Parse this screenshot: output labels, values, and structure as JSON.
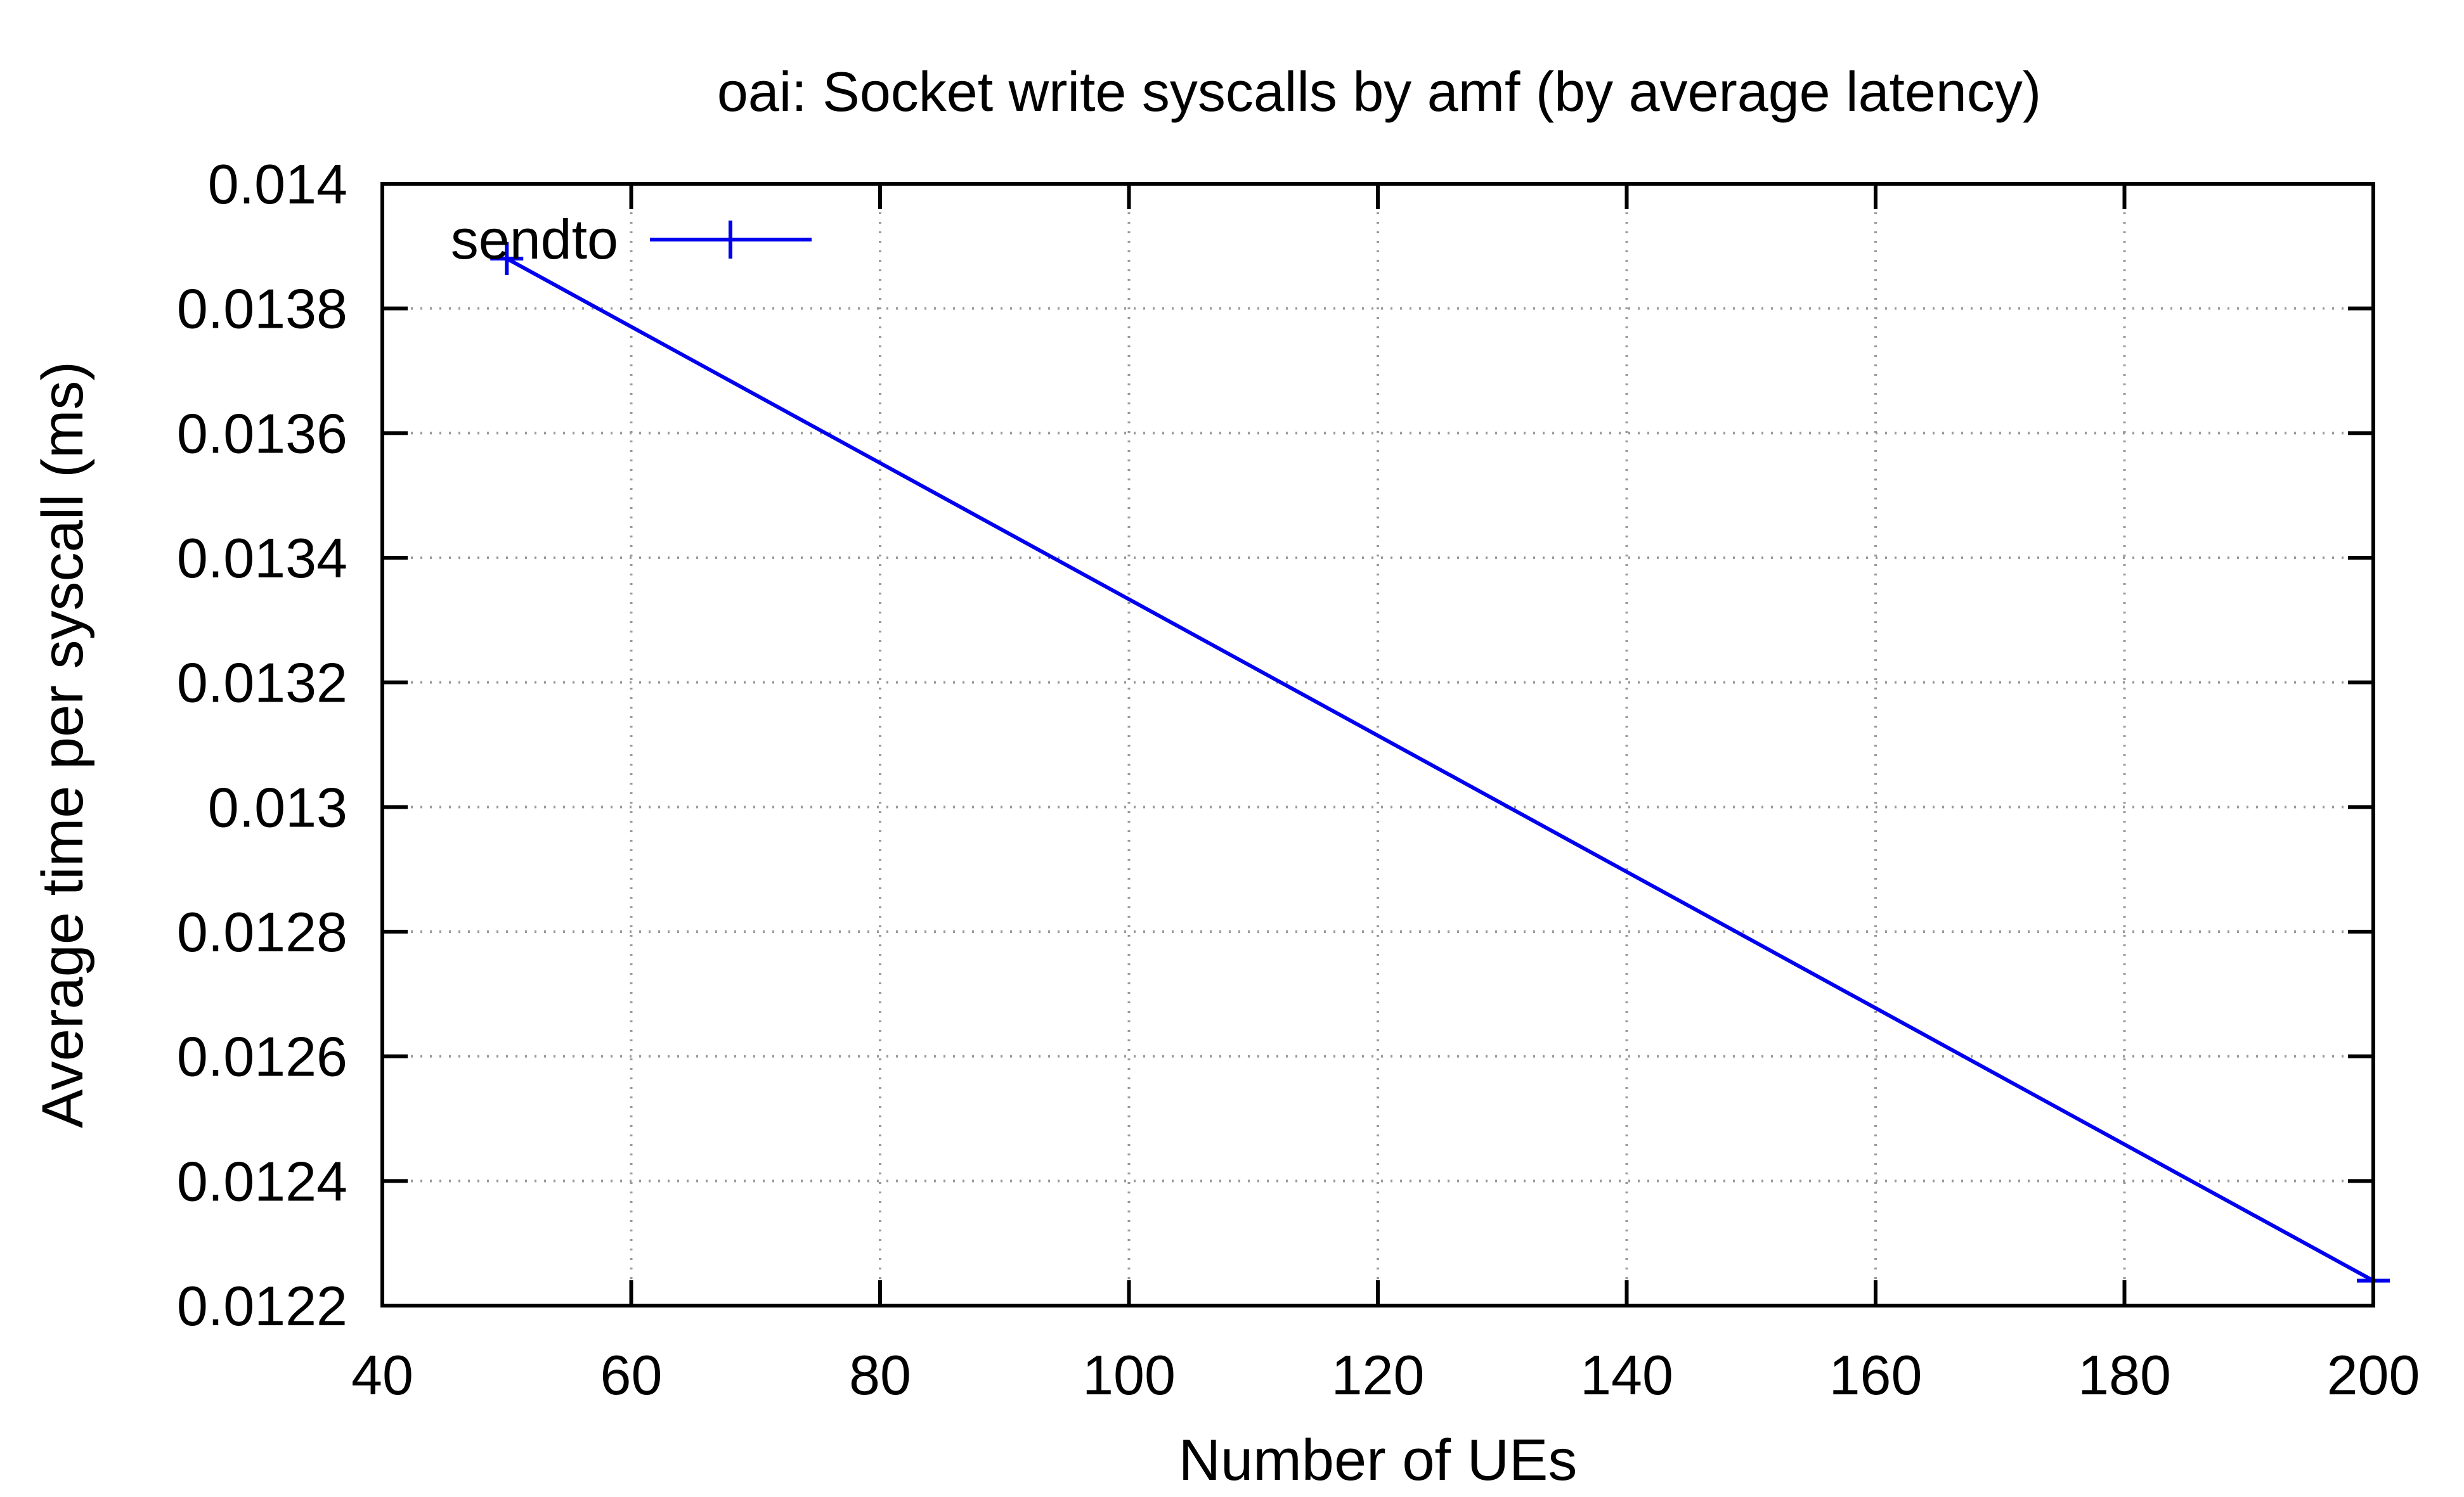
{
  "chart_data": {
    "type": "line",
    "title": "oai: Socket write syscalls by amf (by average latency)",
    "xlabel": "Number of UEs",
    "ylabel": "Average time per syscall (ms)",
    "xlim": [
      40,
      200
    ],
    "ylim": [
      0.0122,
      0.014
    ],
    "x_ticks": [
      "40",
      "60",
      "80",
      "100",
      "120",
      "140",
      "160",
      "180",
      "200"
    ],
    "y_ticks": [
      "0.0122",
      "0.0124",
      "0.0126",
      "0.0128",
      "0.013",
      "0.0132",
      "0.0134",
      "0.0136",
      "0.0138",
      "0.014"
    ],
    "grid": true,
    "legend_position": "top-left",
    "series": [
      {
        "name": "sendto",
        "color": "#0000ee",
        "marker": "plus",
        "x": [
          50,
          200
        ],
        "y": [
          0.01388,
          0.01224
        ]
      }
    ]
  }
}
